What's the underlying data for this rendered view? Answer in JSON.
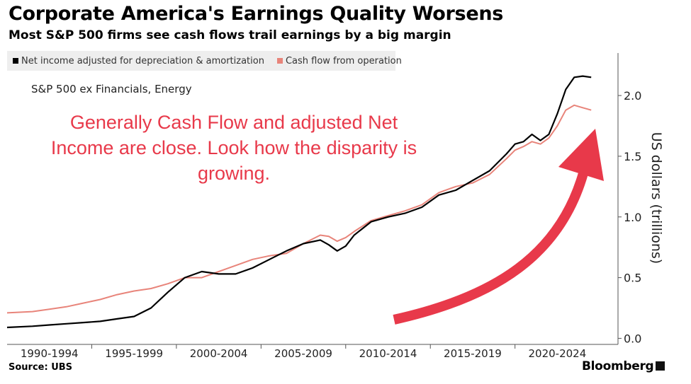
{
  "title": "Corporate America's Earnings Quality Worsens",
  "subtitle": "Most S&P 500 firms see cash flows trail earnings by a big margin",
  "note": "S&P 500 ex Financials, Energy",
  "annotation": {
    "line1": "Generally Cash Flow and adjusted Net",
    "line2": "Income are close. Look how the disparity is",
    "line3": "growing.",
    "color": "#e8394a"
  },
  "source": "Source: UBS",
  "brand": "Bloomberg",
  "chart_data": {
    "type": "line",
    "ylabel": "US dollars (trillions)",
    "ylim": [
      -0.05,
      2.35
    ],
    "yticks": [
      0.0,
      0.5,
      1.0,
      1.5,
      2.0
    ],
    "ytick_labels": [
      "0.0",
      "0.5",
      "1.0",
      "1.5",
      "2.0"
    ],
    "xlim": [
      1989.5,
      2025.5
    ],
    "xtick_labels": [
      "1990-1994",
      "1995-1999",
      "2000-2004",
      "2005-2009",
      "2010-2014",
      "2015-2019",
      "2020-2024"
    ],
    "grid": false,
    "legend_position": "top-left",
    "series": [
      {
        "name": "Net income adjusted for depreciation & amortization",
        "color": "#000000",
        "x": [
          1989.5,
          1991,
          1992,
          1993,
          1994,
          1995,
          1996,
          1997,
          1998,
          1999,
          2000,
          2001,
          2002,
          2003,
          2004,
          2005,
          2006,
          2007,
          2008,
          2008.5,
          2009,
          2009.5,
          2010,
          2011,
          2012,
          2013,
          2014,
          2015,
          2016,
          2017,
          2018,
          2019,
          2019.5,
          2020,
          2020.5,
          2021,
          2021.5,
          2022,
          2022.5,
          2023,
          2023.5,
          2024
        ],
        "values": [
          0.09,
          0.1,
          0.11,
          0.12,
          0.13,
          0.14,
          0.16,
          0.18,
          0.25,
          0.38,
          0.5,
          0.55,
          0.53,
          0.53,
          0.58,
          0.65,
          0.72,
          0.78,
          0.81,
          0.77,
          0.72,
          0.76,
          0.85,
          0.96,
          1.0,
          1.03,
          1.08,
          1.18,
          1.22,
          1.3,
          1.38,
          1.52,
          1.6,
          1.62,
          1.68,
          1.63,
          1.68,
          1.85,
          2.05,
          2.15,
          2.16,
          2.15
        ]
      },
      {
        "name": "Cash flow from operation",
        "color": "#e8847a",
        "x": [
          1989.5,
          1991,
          1992,
          1993,
          1994,
          1995,
          1996,
          1997,
          1998,
          1999,
          2000,
          2001,
          2002,
          2003,
          2004,
          2005,
          2006,
          2007,
          2008,
          2008.5,
          2009,
          2009.5,
          2010,
          2011,
          2012,
          2013,
          2014,
          2015,
          2016,
          2017,
          2018,
          2019,
          2019.5,
          2020,
          2020.5,
          2021,
          2021.5,
          2022,
          2022.5,
          2023,
          2023.5,
          2024
        ],
        "values": [
          0.21,
          0.22,
          0.24,
          0.26,
          0.29,
          0.32,
          0.36,
          0.39,
          0.41,
          0.45,
          0.5,
          0.5,
          0.55,
          0.6,
          0.65,
          0.68,
          0.7,
          0.78,
          0.85,
          0.84,
          0.8,
          0.83,
          0.88,
          0.97,
          1.01,
          1.05,
          1.1,
          1.2,
          1.25,
          1.28,
          1.35,
          1.48,
          1.55,
          1.58,
          1.62,
          1.6,
          1.65,
          1.75,
          1.88,
          1.92,
          1.9,
          1.88
        ]
      }
    ]
  }
}
